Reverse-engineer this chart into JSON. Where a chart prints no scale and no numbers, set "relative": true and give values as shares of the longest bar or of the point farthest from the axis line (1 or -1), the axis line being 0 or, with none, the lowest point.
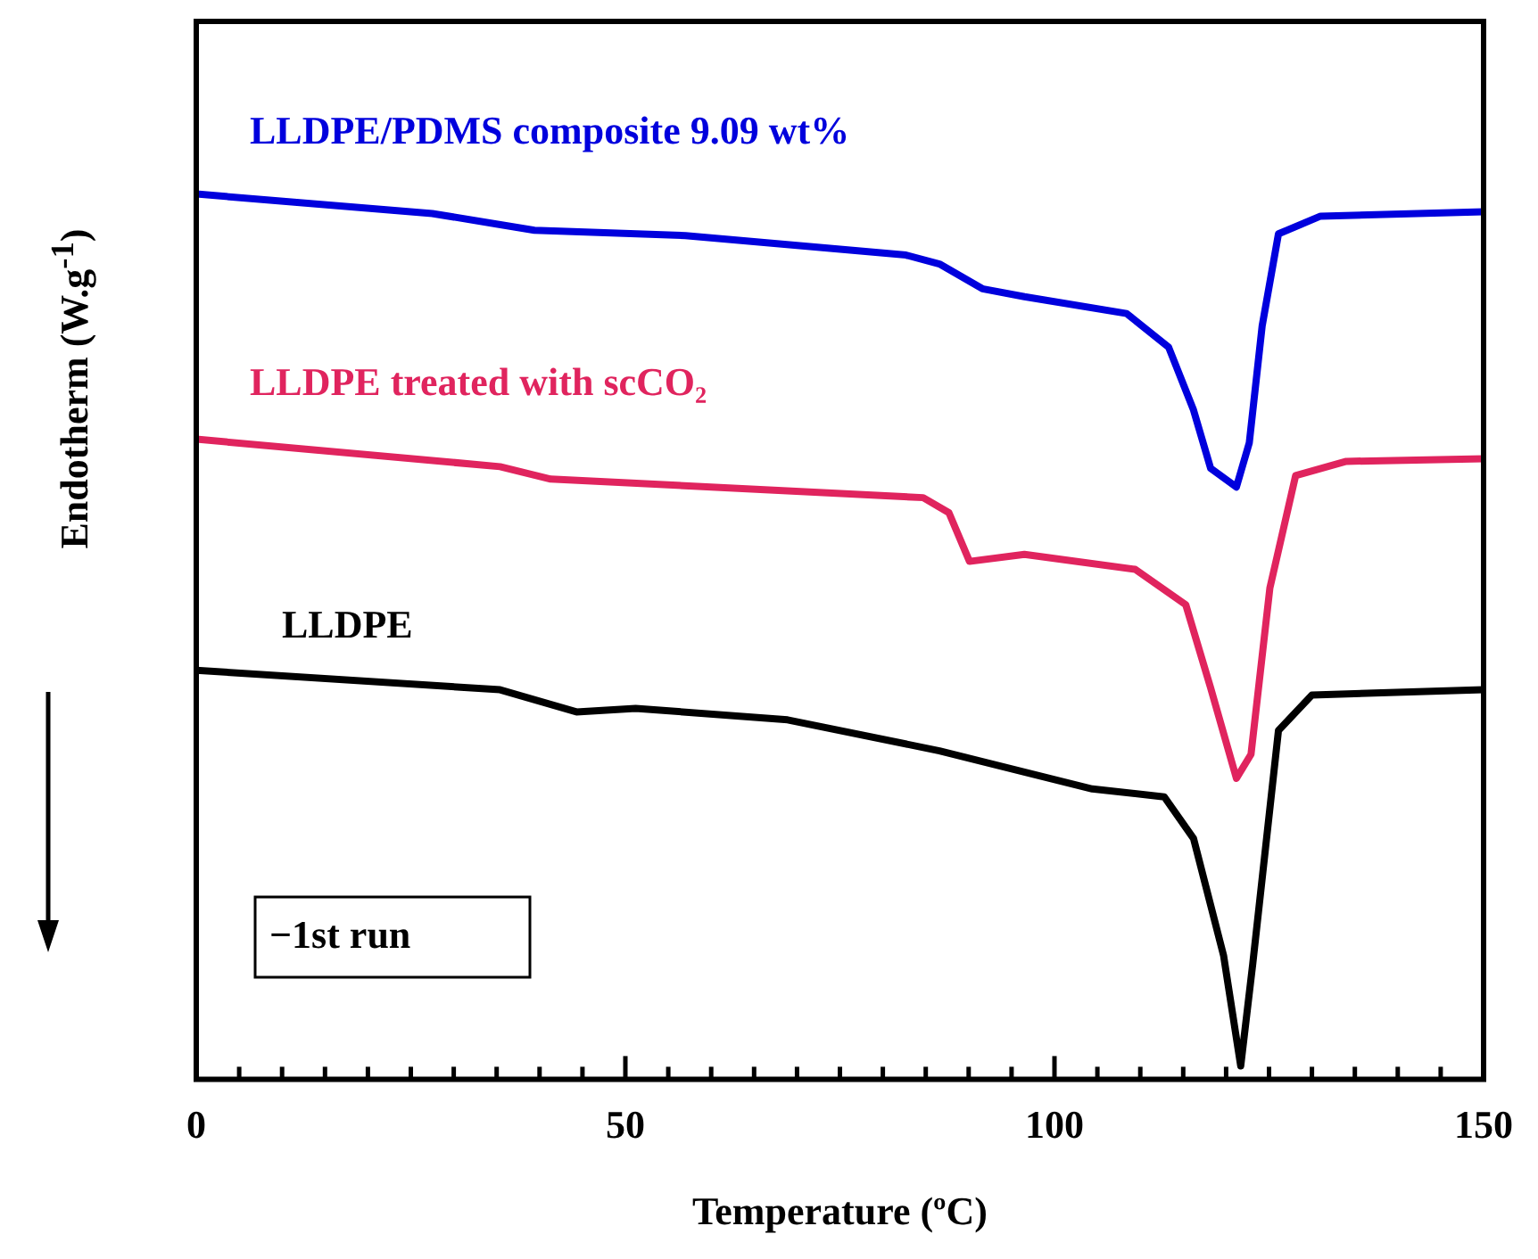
{
  "chart_data": {
    "type": "line",
    "relative": true,
    "xlabel": "Temperature (ºC)",
    "ylabel": "Endotherm  (W.g$^{-1}$)",
    "xlim": [
      0,
      150
    ],
    "xticks": [
      0,
      {
        "value": 5,
        "label": null
      },
      {
        "value": 10,
        "label": null
      },
      {
        "value": 15,
        "label": null
      },
      {
        "value": 20,
        "label": null
      },
      {
        "value": 25,
        "label": null
      },
      {
        "value": 30,
        "label": null
      },
      {
        "value": 35,
        "label": null
      },
      {
        "value": 40,
        "label": null
      },
      {
        "value": 45,
        "label": null
      },
      50,
      {
        "value": 55,
        "label": null
      },
      {
        "value": 60,
        "label": null
      },
      {
        "value": 65,
        "label": null
      },
      {
        "value": 70,
        "label": null
      },
      {
        "value": 75,
        "label": null
      },
      {
        "value": 80,
        "label": null
      },
      {
        "value": 85,
        "label": null
      },
      {
        "value": 90,
        "label": null
      },
      {
        "value": 95,
        "label": null
      },
      100,
      {
        "value": 105,
        "label": null
      },
      {
        "value": 110,
        "label": null
      },
      {
        "value": 115,
        "label": null
      },
      {
        "value": 120,
        "label": null
      },
      {
        "value": 125,
        "label": null
      },
      {
        "value": 130,
        "label": null
      },
      {
        "value": 135,
        "label": null
      },
      {
        "value": 140,
        "label": null
      },
      {
        "value": 145,
        "label": null
      },
      150
    ],
    "legend": false,
    "grid": false,
    "annotations": [
      "−1st run"
    ],
    "series": [
      {
        "name": "LLDPE/PDMS composite 9.09 wt%",
        "color": "#0000dd",
        "x": [
          0,
          27.5,
          39.4,
          57,
          82.7,
          86.6,
          91.6,
          96.5,
          108.4,
          113.3,
          116.2,
          118.2,
          121.2,
          122.7,
          124.2,
          126.1,
          131,
          150
        ],
        "values": [
          1.0,
          0.978,
          0.959,
          0.953,
          0.931,
          0.921,
          0.893,
          0.884,
          0.865,
          0.827,
          0.756,
          0.69,
          0.669,
          0.719,
          0.851,
          0.955,
          0.975,
          0.98
        ]
      },
      {
        "name": "LLDPE treated with scCO₂",
        "color": "#e0245e",
        "x": [
          0,
          35.4,
          41.3,
          84.7,
          87.7,
          90.1,
          96.5,
          109.4,
          115.3,
          118.2,
          121.2,
          122.9,
          125.1,
          128.1,
          134,
          150
        ],
        "values": [
          0.723,
          0.692,
          0.678,
          0.657,
          0.64,
          0.585,
          0.593,
          0.576,
          0.536,
          0.442,
          0.34,
          0.367,
          0.555,
          0.682,
          0.698,
          0.701
        ]
      },
      {
        "name": "LLDPE",
        "color": "#000000",
        "x": [
          0,
          35.4,
          44.3,
          51.2,
          68.9,
          86.6,
          104.4,
          112.8,
          116.2,
          119.7,
          121.7,
          123.1,
          126.1,
          130,
          150
        ],
        "values": [
          0.462,
          0.44,
          0.415,
          0.419,
          0.406,
          0.371,
          0.328,
          0.319,
          0.272,
          0.14,
          0.015,
          0.13,
          0.394,
          0.434,
          0.44
        ]
      }
    ]
  }
}
